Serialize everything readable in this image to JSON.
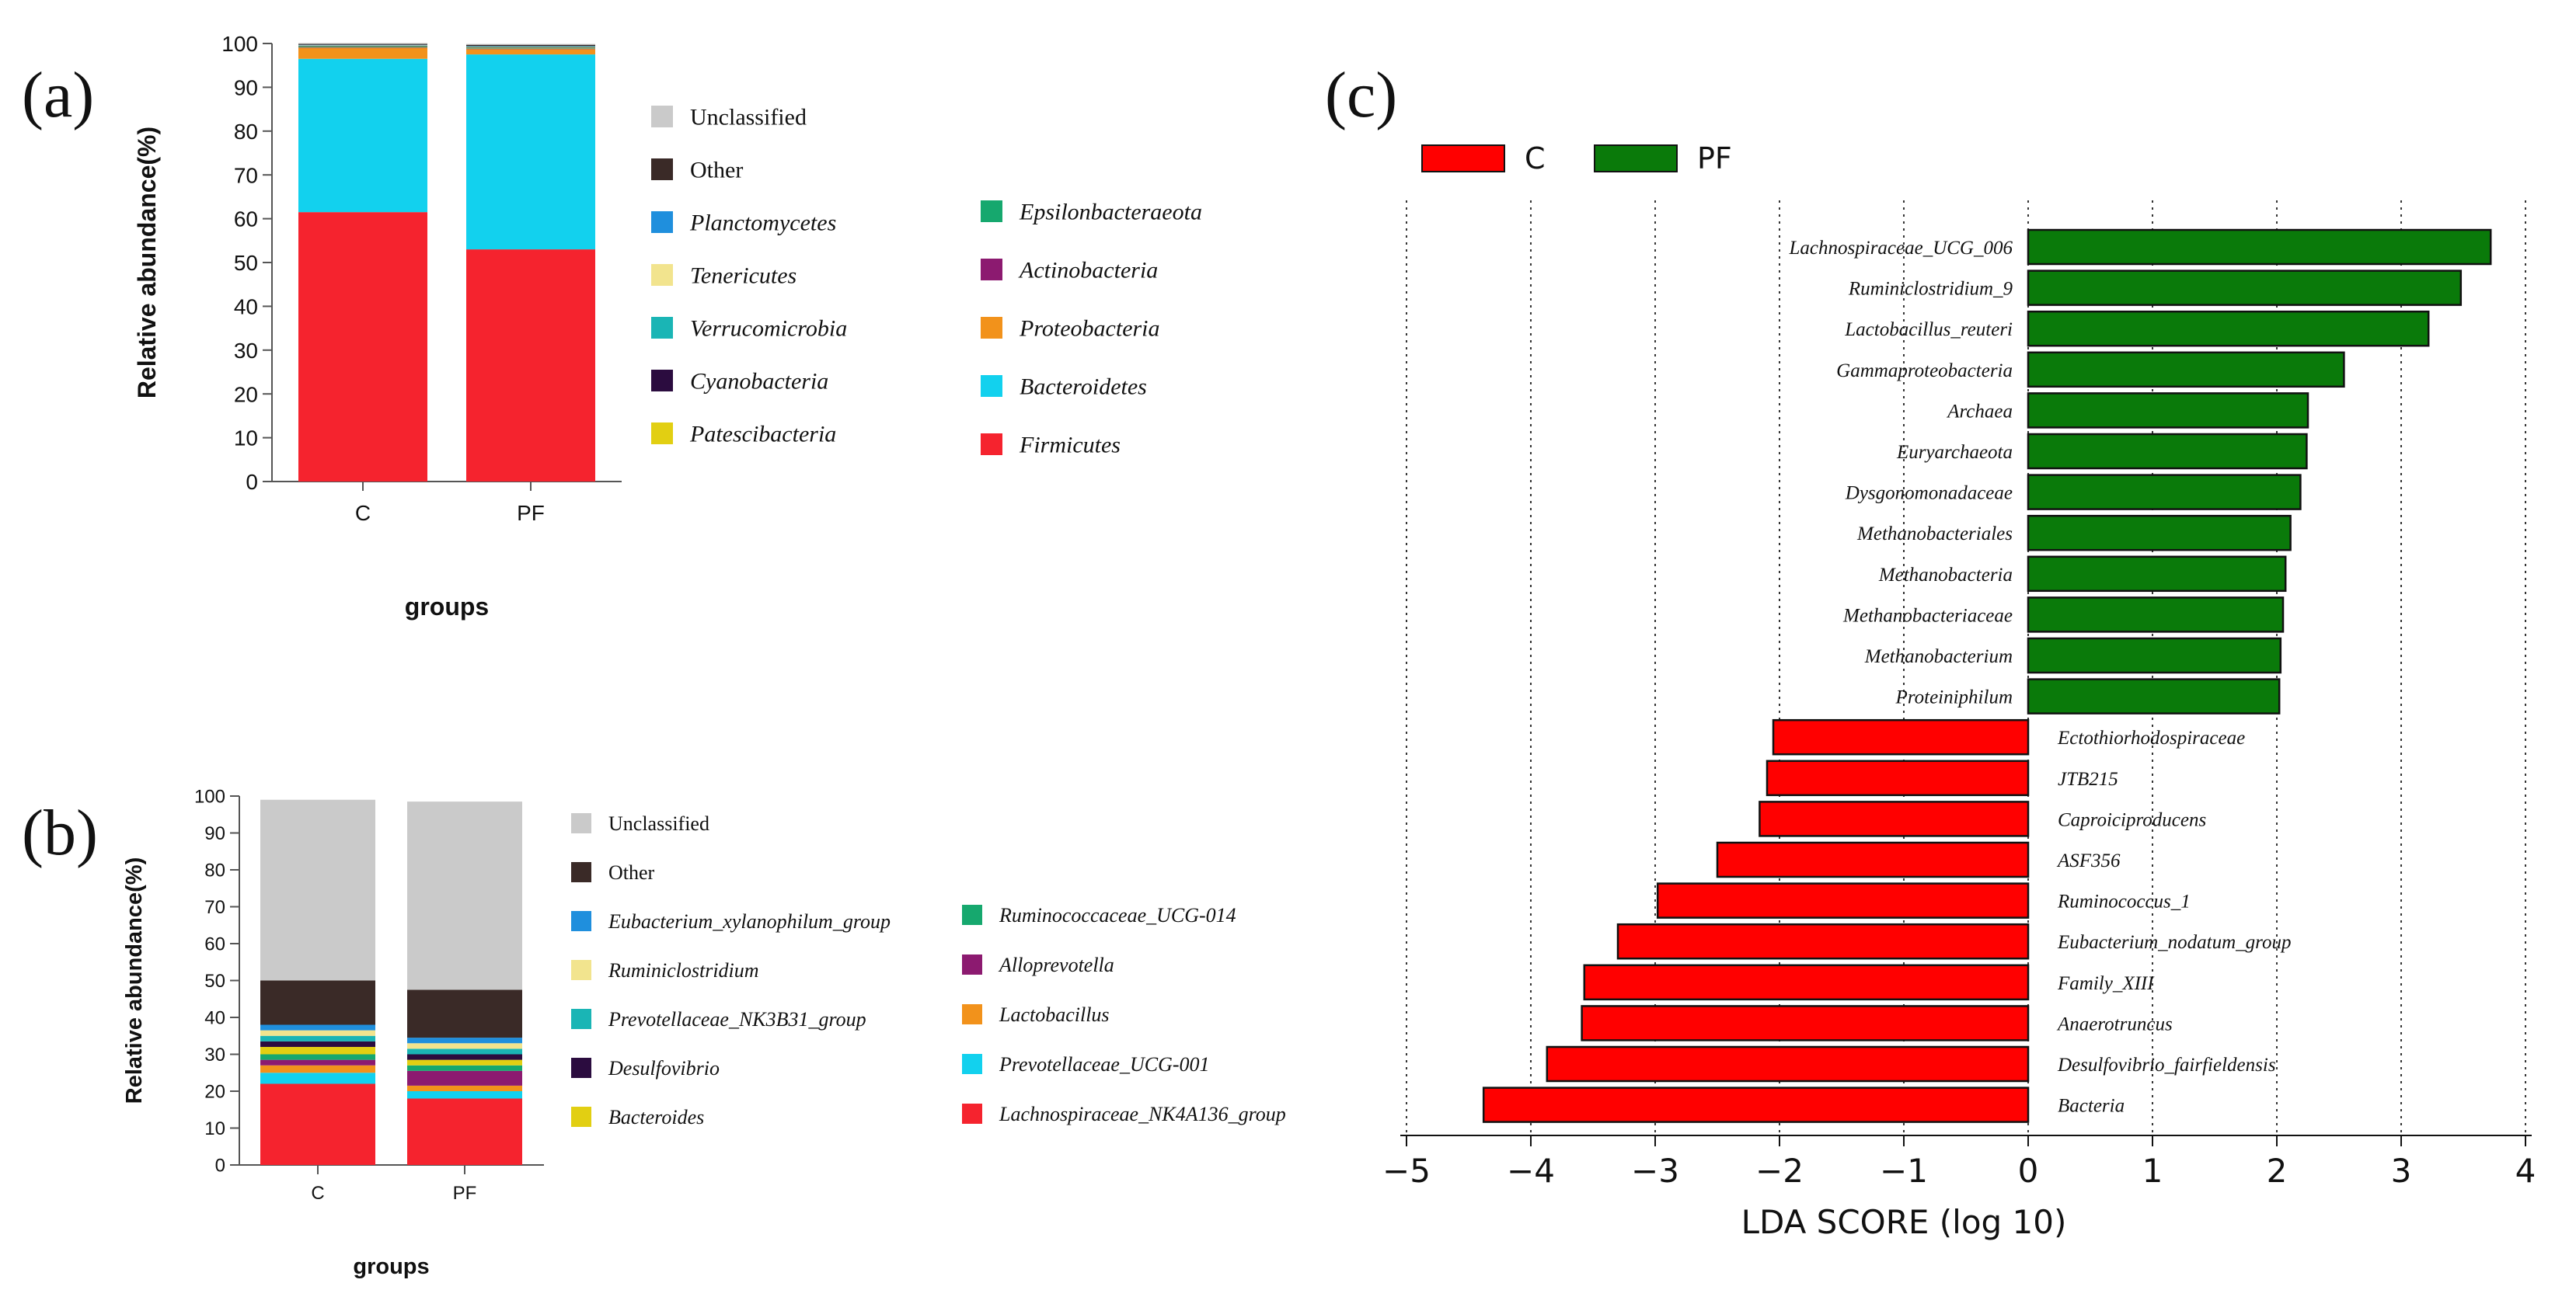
{
  "panel_labels": {
    "a": "(a)",
    "b": "(b)",
    "c": "(c)"
  },
  "colors": {
    "Unclassified": "#cacaca",
    "Other": "#3a2a27",
    "Planctomycetes": "#1f8fdd",
    "Tenericutes": "#f2e48e",
    "Verrucomicrobia": "#1ab5b5",
    "Cyanobacteria": "#2b0c3f",
    "Patescibacteria": "#e2cf12",
    "Epsilonbacteraeota": "#16a86e",
    "Actinobacteria": "#8c1a70",
    "Proteobacteria": "#f2921b",
    "Bacteroidetes": "#12d1ee",
    "Firmicutes": "#f5232e",
    "lda_C": "#ff0000",
    "lda_PF": "#0a7a0a"
  },
  "chart_data": [
    {
      "id": "a",
      "type": "bar",
      "stacked": true,
      "title": "",
      "xlabel": "groups",
      "ylabel": "Relative abundance(%)",
      "ylim": [
        0,
        100
      ],
      "yticks": [
        "0",
        "10",
        "20",
        "30",
        "40",
        "50",
        "60",
        "70",
        "80",
        "90",
        "100"
      ],
      "categories": [
        "C",
        "PF"
      ],
      "series": [
        {
          "name": "Firmicutes",
          "values": [
            61.5,
            53
          ]
        },
        {
          "name": "Bacteroidetes",
          "values": [
            35,
            44.5
          ]
        },
        {
          "name": "Proteobacteria",
          "values": [
            2.5,
            1.2
          ]
        },
        {
          "name": "Actinobacteria",
          "values": [
            0.1,
            0.1
          ]
        },
        {
          "name": "Epsilonbacteraeota",
          "values": [
            0.1,
            0.1
          ]
        },
        {
          "name": "Patescibacteria",
          "values": [
            0.1,
            0.1
          ]
        },
        {
          "name": "Cyanobacteria",
          "values": [
            0.1,
            0.1
          ]
        },
        {
          "name": "Verrucomicrobia",
          "values": [
            0.1,
            0.1
          ]
        },
        {
          "name": "Tenericutes",
          "values": [
            0.1,
            0.1
          ]
        },
        {
          "name": "Planctomycetes",
          "values": [
            0.1,
            0.1
          ]
        },
        {
          "name": "Other",
          "values": [
            0.2,
            0.3
          ]
        },
        {
          "name": "Unclassified",
          "values": [
            0.2,
            0.2
          ]
        }
      ],
      "legend": {
        "col1": [
          "Unclassified",
          "Other",
          "Planctomycetes",
          "Tenericutes",
          "Verrucomicrobia",
          "Cyanobacteria",
          "Patescibacteria"
        ],
        "col2": [
          "Epsilonbacteraeota",
          "Actinobacteria",
          "Proteobacteria",
          "Bacteroidetes",
          "Firmicutes"
        ],
        "italic": [
          "Planctomycetes",
          "Tenericutes",
          "Verrucomicrobia",
          "Cyanobacteria",
          "Patescibacteria",
          "Epsilonbacteraeota",
          "Actinobacteria",
          "Proteobacteria",
          "Bacteroidetes",
          "Firmicutes"
        ]
      }
    },
    {
      "id": "b",
      "type": "bar",
      "stacked": true,
      "title": "",
      "xlabel": "groups",
      "ylabel": "Relative abundance(%)",
      "ylim": [
        0,
        100
      ],
      "yticks": [
        "0",
        "10",
        "20",
        "30",
        "40",
        "50",
        "60",
        "70",
        "80",
        "90",
        "100"
      ],
      "categories": [
        "C",
        "PF"
      ],
      "series": [
        {
          "name": "Lachnospiraceae_NK4A136_group",
          "color": "#f5232e",
          "values": [
            22,
            18
          ]
        },
        {
          "name": "Prevotellaceae_UCG-001",
          "color": "#12d1ee",
          "values": [
            3,
            2
          ]
        },
        {
          "name": "Lactobacillus",
          "color": "#f2921b",
          "values": [
            2,
            1.5
          ]
        },
        {
          "name": "Alloprevotella",
          "color": "#8c1a70",
          "values": [
            1.5,
            4
          ]
        },
        {
          "name": "Ruminococcaceae_UCG-014",
          "color": "#16a86e",
          "values": [
            1.5,
            1.5
          ]
        },
        {
          "name": "Bacteroides",
          "color": "#e2cf12",
          "values": [
            2,
            1.5
          ]
        },
        {
          "name": "Desulfovibrio",
          "color": "#2b0c3f",
          "values": [
            1.5,
            1.5
          ]
        },
        {
          "name": "Prevotellaceae_NK3B31_group",
          "color": "#1ab5b5",
          "values": [
            1.5,
            1.5
          ]
        },
        {
          "name": "Ruminiclostridium",
          "color": "#f2e48e",
          "values": [
            1.5,
            1.5
          ]
        },
        {
          "name": "Eubacterium_xylanophilum_group",
          "color": "#1f8fdd",
          "values": [
            1.5,
            1.5
          ]
        },
        {
          "name": "Other",
          "color": "#3a2a27",
          "values": [
            12,
            13
          ]
        },
        {
          "name": "Unclassified",
          "color": "#cacaca",
          "values": [
            49,
            51
          ]
        }
      ],
      "legend": {
        "col1": [
          "Unclassified",
          "Other",
          "Eubacterium_xylanophilum_group",
          "Ruminiclostridium",
          "Prevotellaceae_NK3B31_group",
          "Desulfovibrio",
          "Bacteroides"
        ],
        "col2": [
          "Ruminococcaceae_UCG-014",
          "Alloprevotella",
          "Lactobacillus",
          "Prevotellaceae_UCG-001",
          "Lachnospiraceae_NK4A136_group"
        ],
        "italic": [
          "Eubacterium_xylanophilum_group",
          "Ruminiclostridium",
          "Prevotellaceae_NK3B31_group",
          "Desulfovibrio",
          "Bacteroides",
          "Ruminococcaceae_UCG-014",
          "Alloprevotella",
          "Lactobacillus",
          "Prevotellaceae_UCG-001",
          "Lachnospiraceae_NK4A136_group"
        ]
      }
    },
    {
      "id": "c",
      "type": "bar",
      "orientation": "horizontal",
      "title": "",
      "xlabel": "LDA SCORE (log 10)",
      "ylabel": "",
      "xlim": [
        -5,
        4
      ],
      "xticks": [
        "−5",
        "−4",
        "−3",
        "−2",
        "−1",
        "0",
        "1",
        "2",
        "3",
        "4"
      ],
      "grid": true,
      "legend": [
        {
          "name": "C"
        },
        {
          "name": "PF"
        }
      ],
      "legend_position": "top-left",
      "bars": [
        {
          "label": "Lachnospiraceae_UCG_006",
          "value": 3.72,
          "group": "PF"
        },
        {
          "label": "Ruminiclostridium_9",
          "value": 3.48,
          "group": "PF"
        },
        {
          "label": "Lactobacillus_reuteri",
          "value": 3.22,
          "group": "PF"
        },
        {
          "label": "Gammaproteobacteria",
          "value": 2.54,
          "group": "PF"
        },
        {
          "label": "Archaea",
          "value": 2.25,
          "group": "PF"
        },
        {
          "label": "Euryarchaeota",
          "value": 2.24,
          "group": "PF"
        },
        {
          "label": "Dysgonomonadaceae",
          "value": 2.19,
          "group": "PF"
        },
        {
          "label": "Methanobacteriales",
          "value": 2.11,
          "group": "PF"
        },
        {
          "label": "Methanobacteria",
          "value": 2.07,
          "group": "PF"
        },
        {
          "label": "Methanobacteriaceae",
          "value": 2.05,
          "group": "PF"
        },
        {
          "label": "Methanobacterium",
          "value": 2.03,
          "group": "PF"
        },
        {
          "label": "Proteiniphilum",
          "value": 2.02,
          "group": "PF"
        },
        {
          "label": "Ectothiorhodospiraceae",
          "value": -2.05,
          "group": "C"
        },
        {
          "label": "JTB215",
          "value": -2.1,
          "group": "C"
        },
        {
          "label": "Caproiciproducens",
          "value": -2.16,
          "group": "C"
        },
        {
          "label": "ASF356",
          "value": -2.5,
          "group": "C"
        },
        {
          "label": "Ruminococcus_1",
          "value": -2.98,
          "group": "C"
        },
        {
          "label": "Eubacterium_nodatum_group",
          "value": -3.3,
          "group": "C"
        },
        {
          "label": "Family_XIII",
          "value": -3.57,
          "group": "C"
        },
        {
          "label": "Anaerotruncus",
          "value": -3.59,
          "group": "C"
        },
        {
          "label": "Desulfovibrio_fairfieldensis",
          "value": -3.87,
          "group": "C"
        },
        {
          "label": "Bacteria",
          "value": -4.38,
          "group": "C"
        }
      ]
    }
  ]
}
